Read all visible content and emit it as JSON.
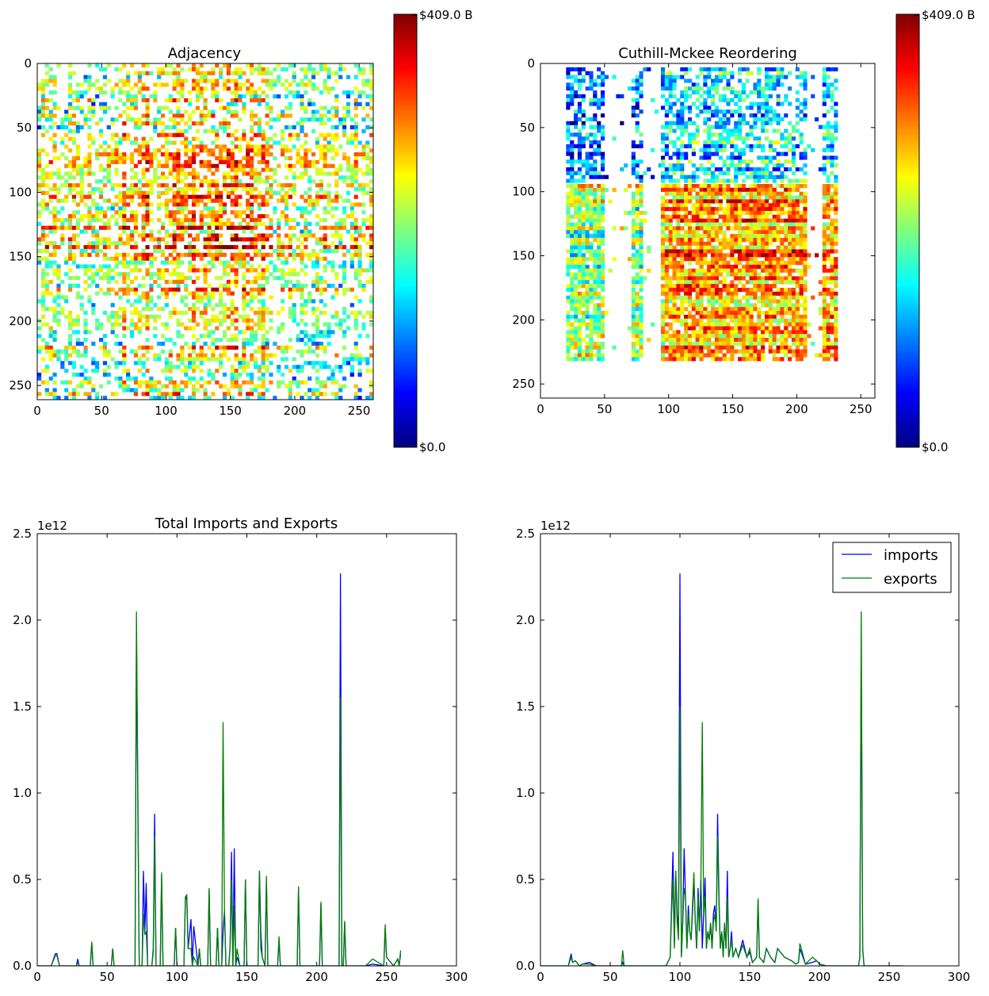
{
  "colors": {
    "imports": "#0000ff",
    "exports": "#007f00",
    "jet_stops": [
      "#00007f",
      "#0000ff",
      "#007fff",
      "#00ffff",
      "#7fff7f",
      "#ffff00",
      "#ff7f00",
      "#ff0000",
      "#7f0000"
    ]
  },
  "colorbar": {
    "max_label": "$409.0 B",
    "min_label": "$0.0",
    "min_value_usd": 0,
    "max_value_usd": 409000000000
  },
  "chart_data": [
    {
      "type": "heatmap",
      "title": "Adjacency",
      "xlim": [
        0,
        261
      ],
      "ylim": [
        261,
        0
      ],
      "x_ticks": [
        "0",
        "50",
        "100",
        "150",
        "200",
        "250"
      ],
      "y_ticks": [
        "0",
        "50",
        "100",
        "150",
        "200",
        "250"
      ],
      "matrix_size": 261,
      "colormap": "jet",
      "note_values": "dense scattered trade flows; strongest (orange/red) blocks near rows 70-170 and columns 70-170"
    },
    {
      "type": "heatmap",
      "title": "Cuthill-Mckee Reordering",
      "xlim": [
        0,
        261
      ],
      "ylim": [
        261,
        0
      ],
      "x_ticks": [
        "0",
        "50",
        "100",
        "150",
        "200",
        "250"
      ],
      "y_ticks": [
        "0",
        "50",
        "100",
        "150",
        "200",
        "250"
      ],
      "matrix_size": 261,
      "colormap": "jet",
      "blocks": [
        {
          "rows": [
            3,
            93
          ],
          "cols": [
            20,
            95
          ],
          "level": 0.3
        },
        {
          "rows": [
            3,
            93
          ],
          "cols": [
            94,
            230
          ],
          "level": 0.35
        },
        {
          "rows": [
            94,
            230
          ],
          "cols": [
            20,
            95
          ],
          "level": 0.6
        },
        {
          "rows": [
            94,
            230
          ],
          "cols": [
            94,
            230
          ],
          "level": 0.72
        }
      ]
    },
    {
      "type": "line",
      "title": "Total Imports and Exports",
      "offset_text": "1e12",
      "xlim": [
        0,
        300
      ],
      "ylim": [
        0,
        2.5
      ],
      "x_ticks": [
        "0",
        "50",
        "100",
        "150",
        "200",
        "250",
        "300"
      ],
      "y_ticks": [
        "0.0",
        "0.5",
        "1.0",
        "1.5",
        "2.0",
        "2.5"
      ],
      "series": [
        {
          "name": "imports",
          "x": [
            0,
            10,
            13,
            14,
            16,
            28,
            29,
            30,
            38,
            39,
            40,
            53,
            54,
            55,
            62,
            70,
            71,
            72,
            73,
            75,
            76,
            77,
            78,
            79,
            82,
            83,
            84,
            85,
            86,
            88,
            89,
            90,
            98,
            99,
            100,
            105,
            106,
            107,
            108,
            110,
            111,
            112,
            115,
            116,
            117,
            122,
            123,
            124,
            128,
            129,
            130,
            132,
            133,
            134,
            135,
            137,
            138,
            139,
            140,
            141,
            142,
            143,
            145,
            148,
            149,
            150,
            158,
            159,
            160,
            161,
            163,
            164,
            165,
            172,
            173,
            174,
            186,
            187,
            188,
            202,
            203,
            204,
            216,
            217,
            218,
            219,
            220,
            221,
            235,
            240,
            248,
            249,
            250,
            255,
            258,
            259,
            260
          ],
          "y": [
            0,
            0,
            0.07,
            0.07,
            0,
            0,
            0.04,
            0,
            0,
            0.13,
            0,
            0,
            0.1,
            0,
            0,
            0,
            1.9,
            0.9,
            0,
            0,
            0.55,
            0.2,
            0.48,
            0,
            0,
            0.1,
            0.88,
            0,
            0,
            0,
            0.52,
            0,
            0,
            0.22,
            0,
            0,
            0.38,
            0.4,
            0.1,
            0.27,
            0,
            0.23,
            0,
            0.1,
            0,
            0,
            0.44,
            0,
            0,
            0.22,
            0,
            0,
            0.2,
            0.32,
            0,
            0,
            0.1,
            0.66,
            0,
            0.68,
            0,
            0.05,
            0,
            0,
            0.5,
            0,
            0,
            0.55,
            0.2,
            0.05,
            0,
            0.5,
            0,
            0,
            0.15,
            0,
            0,
            0.45,
            0,
            0,
            0.36,
            0,
            0,
            2.27,
            0,
            0,
            0.25,
            0,
            0,
            0.01,
            0,
            0.22,
            0.05,
            0,
            0.04,
            0,
            0.07
          ]
        },
        {
          "name": "exports",
          "x": [
            0,
            10,
            13,
            14,
            16,
            28,
            29,
            30,
            38,
            39,
            40,
            53,
            54,
            55,
            62,
            70,
            71,
            72,
            73,
            75,
            76,
            77,
            78,
            79,
            82,
            83,
            84,
            85,
            86,
            88,
            89,
            90,
            98,
            99,
            100,
            105,
            106,
            107,
            108,
            110,
            111,
            112,
            115,
            116,
            117,
            122,
            123,
            124,
            128,
            129,
            130,
            132,
            133,
            134,
            135,
            137,
            138,
            139,
            140,
            141,
            142,
            143,
            145,
            148,
            149,
            150,
            158,
            159,
            160,
            161,
            163,
            164,
            165,
            172,
            173,
            174,
            186,
            187,
            188,
            202,
            203,
            204,
            216,
            217,
            218,
            219,
            220,
            221,
            235,
            240,
            248,
            249,
            250,
            255,
            258,
            259,
            260
          ],
          "y": [
            0,
            0,
            0.06,
            0.06,
            0,
            0,
            0.02,
            0,
            0,
            0.14,
            0,
            0,
            0.1,
            0,
            0,
            0,
            2.05,
            1.0,
            0,
            0,
            0.3,
            0.18,
            0.2,
            0,
            0,
            0.08,
            0.75,
            0,
            0,
            0,
            0.54,
            0,
            0,
            0.22,
            0,
            0,
            0.4,
            0.41,
            0.1,
            0.1,
            0,
            0.05,
            0,
            0.1,
            0,
            0,
            0.45,
            0,
            0,
            0.22,
            0,
            0,
            1.41,
            0.3,
            0,
            0,
            0.1,
            0.5,
            0,
            0.35,
            0,
            0.1,
            0,
            0,
            0.5,
            0,
            0,
            0.55,
            0.1,
            0.05,
            0,
            0.52,
            0,
            0,
            0.17,
            0,
            0,
            0.46,
            0,
            0,
            0.37,
            0,
            0,
            1.55,
            0,
            0,
            0.26,
            0,
            0,
            0.04,
            0,
            0.24,
            0.05,
            0,
            0.04,
            0,
            0.09
          ]
        }
      ]
    },
    {
      "type": "line",
      "title": "",
      "offset_text": "1e12",
      "xlim": [
        0,
        300
      ],
      "ylim": [
        0,
        2.5
      ],
      "x_ticks": [
        "0",
        "50",
        "100",
        "150",
        "200",
        "250",
        "300"
      ],
      "y_ticks": [
        "0.0",
        "0.5",
        "1.0",
        "1.5",
        "2.0",
        "2.5"
      ],
      "legend": {
        "location": "upper right",
        "entries": [
          "imports",
          "exports"
        ]
      },
      "series": [
        {
          "name": "imports",
          "x": [
            0,
            20,
            22,
            23,
            25,
            28,
            30,
            35,
            40,
            55,
            58,
            59,
            60,
            90,
            93,
            94,
            95,
            96,
            97,
            98,
            99,
            100,
            101,
            102,
            103,
            104,
            105,
            106,
            107,
            108,
            109,
            110,
            111,
            112,
            113,
            114,
            115,
            116,
            117,
            118,
            119,
            120,
            121,
            122,
            123,
            124,
            125,
            126,
            127,
            128,
            129,
            130,
            131,
            132,
            133,
            134,
            135,
            136,
            137,
            138,
            140,
            142,
            145,
            148,
            150,
            152,
            155,
            156,
            157,
            160,
            162,
            165,
            168,
            170,
            175,
            180,
            183,
            185,
            186,
            190,
            195,
            198,
            200,
            205,
            210,
            228,
            229,
            230,
            231,
            232,
            240,
            260
          ],
          "y": [
            0,
            0,
            0.07,
            0.02,
            0.03,
            0,
            0.01,
            0.02,
            0,
            0,
            0,
            0.02,
            0,
            0,
            0.05,
            0.35,
            0.66,
            0.12,
            0.55,
            0.3,
            0.2,
            2.27,
            0.05,
            0.25,
            0.68,
            0.4,
            0.1,
            0.35,
            0.2,
            0.15,
            0.3,
            0.5,
            0.25,
            0.1,
            0.45,
            0.2,
            0.5,
            0.1,
            0.3,
            0.51,
            0.1,
            0.2,
            0.15,
            0.25,
            0.1,
            0.3,
            0.35,
            0.2,
            0.88,
            0.4,
            0.1,
            0.2,
            0.05,
            0.25,
            0.1,
            0.55,
            0.05,
            0.1,
            0.2,
            0.05,
            0.1,
            0.05,
            0.15,
            0.05,
            0.08,
            0.02,
            0.05,
            0.38,
            0.05,
            0.02,
            0.1,
            0.05,
            0.02,
            0.1,
            0.05,
            0.03,
            0.01,
            0.02,
            0.1,
            0.01,
            0.02,
            0.03,
            0.01,
            0,
            0,
            0,
            0.05,
            1.8,
            0.1,
            0,
            0,
            0
          ]
        },
        {
          "name": "exports",
          "x": [
            0,
            20,
            22,
            23,
            25,
            28,
            30,
            35,
            40,
            55,
            58,
            59,
            60,
            90,
            93,
            94,
            95,
            96,
            97,
            98,
            99,
            100,
            101,
            102,
            103,
            104,
            105,
            106,
            107,
            108,
            109,
            110,
            111,
            112,
            113,
            114,
            115,
            116,
            117,
            118,
            119,
            120,
            121,
            122,
            123,
            124,
            125,
            126,
            127,
            128,
            129,
            130,
            131,
            132,
            133,
            134,
            135,
            136,
            137,
            138,
            140,
            142,
            145,
            148,
            150,
            152,
            155,
            156,
            157,
            160,
            162,
            165,
            168,
            170,
            175,
            180,
            183,
            185,
            186,
            190,
            195,
            198,
            200,
            205,
            210,
            228,
            229,
            230,
            231,
            232,
            240,
            260
          ],
          "y": [
            0,
            0,
            0.05,
            0.02,
            0.03,
            0,
            0.01,
            0.01,
            0,
            0,
            0,
            0.09,
            0,
            0,
            0.05,
            0.3,
            0.5,
            0.1,
            0.55,
            0.25,
            0.15,
            1.5,
            0.05,
            0.25,
            0.45,
            0.4,
            0.1,
            0.3,
            0.2,
            0.15,
            0.35,
            0.54,
            0.25,
            0.1,
            0.4,
            0.2,
            0.45,
            1.41,
            0.3,
            0.4,
            0.1,
            0.2,
            0.15,
            0.25,
            0.1,
            0.25,
            0.3,
            0.2,
            0.75,
            0.35,
            0.1,
            0.2,
            0.05,
            0.25,
            0.1,
            0.4,
            0.05,
            0.1,
            0.15,
            0.05,
            0.1,
            0.05,
            0.12,
            0.05,
            0.1,
            0.02,
            0.05,
            0.39,
            0.05,
            0.02,
            0.1,
            0.05,
            0.02,
            0.1,
            0.05,
            0.03,
            0.01,
            0.02,
            0.13,
            0.01,
            0.05,
            0.03,
            0.01,
            0,
            0,
            0,
            0.05,
            2.05,
            0.1,
            0,
            0,
            0
          ]
        }
      ]
    }
  ]
}
